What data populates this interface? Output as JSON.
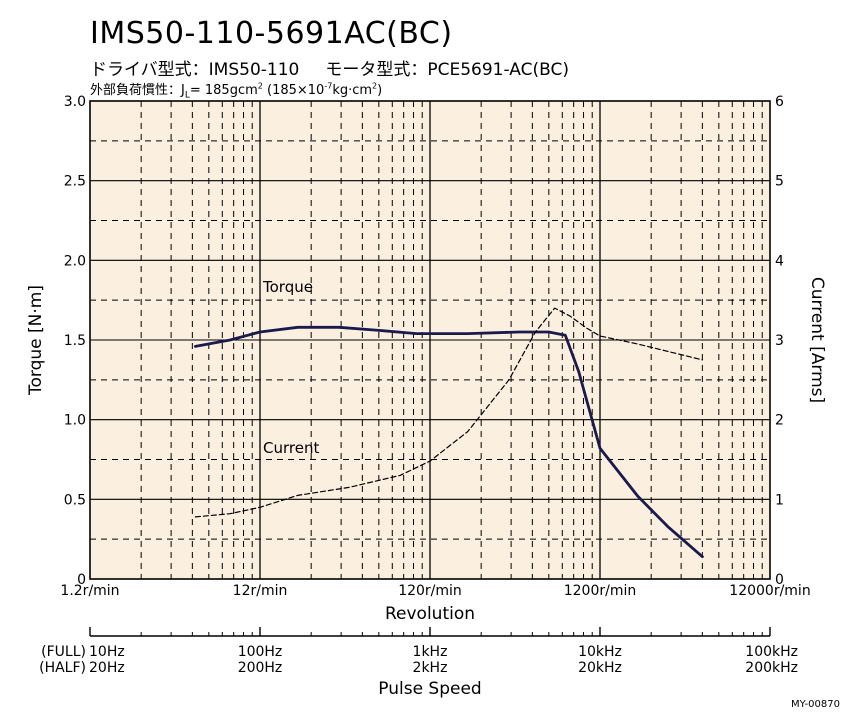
{
  "header": {
    "title": "IMS50-110-5691AC(BC)",
    "driver_label": "ドライバ型式：IMS50-110",
    "motor_label": "モータ型式：PCE5691-AC(BC)",
    "inertia_prefix": "外部負荷慣性：J",
    "inertia_sub": "L",
    "inertia_value": "= 185gcm",
    "inertia_sup": "2",
    "inertia_paren_a": "(185×10",
    "inertia_exp": "-7",
    "inertia_paren_b": "kg·cm",
    "inertia_sup2": "2",
    "inertia_close": ")"
  },
  "footer_code": "MY-00870",
  "colors": {
    "plot_background": "#fbefdf",
    "torque_line": "#1a1a4d",
    "current_line": "#000000",
    "grid": "#000000"
  },
  "chart_data": {
    "type": "line",
    "xlabel": "Revolution",
    "x_scale": "log",
    "xlim": [
      1.2,
      12000
    ],
    "x_tick_values": [
      1.2,
      12,
      120,
      1200,
      12000
    ],
    "x_tick_labels": [
      "1.2r/min",
      "12r/min",
      "120r/min",
      "1200r/min",
      "12000r/min"
    ],
    "ylabel_left": "Torque [N·m]",
    "ylim_left": [
      0,
      3.0
    ],
    "y_ticks_left": [
      0,
      0.5,
      1.0,
      1.5,
      2.0,
      2.5,
      3.0
    ],
    "y_tick_labels_left": [
      "0",
      "0.5",
      "1.0",
      "1.5",
      "2.0",
      "2.5",
      "3.0"
    ],
    "ylabel_right": "Current [Arms]",
    "ylim_right": [
      0,
      6
    ],
    "y_ticks_right": [
      0,
      1,
      2,
      3,
      4,
      5,
      6
    ],
    "y_tick_labels_right": [
      "0",
      "1",
      "2",
      "3",
      "4",
      "5",
      "6"
    ],
    "grid": true,
    "pulse_axis": {
      "label": "Pulse Speed",
      "full_label": "(FULL)",
      "half_label": "(HALF)",
      "full_ticks": [
        "10Hz",
        "100Hz",
        "1kHz",
        "10kHz",
        "100kHz"
      ],
      "half_ticks": [
        "20Hz",
        "200Hz",
        "2kHz",
        "20kHz",
        "200kHz"
      ]
    },
    "series": [
      {
        "name": "Torque",
        "axis": "left",
        "style": "solid",
        "x": [
          5,
          8,
          12,
          20,
          35,
          60,
          100,
          200,
          400,
          600,
          750,
          900,
          1200,
          2000,
          3000,
          4800
        ],
        "y": [
          1.46,
          1.5,
          1.55,
          1.58,
          1.58,
          1.56,
          1.54,
          1.54,
          1.55,
          1.55,
          1.53,
          1.3,
          0.82,
          0.52,
          0.33,
          0.14
        ]
      },
      {
        "name": "Current",
        "axis": "right",
        "style": "dashed",
        "x": [
          5,
          8,
          12,
          20,
          40,
          80,
          120,
          200,
          350,
          500,
          650,
          800,
          1000,
          1200,
          2000,
          4800
        ],
        "y": [
          0.78,
          0.82,
          0.9,
          1.05,
          1.15,
          1.3,
          1.48,
          1.85,
          2.5,
          3.1,
          3.4,
          3.3,
          3.15,
          3.05,
          2.95,
          2.75
        ]
      }
    ]
  }
}
